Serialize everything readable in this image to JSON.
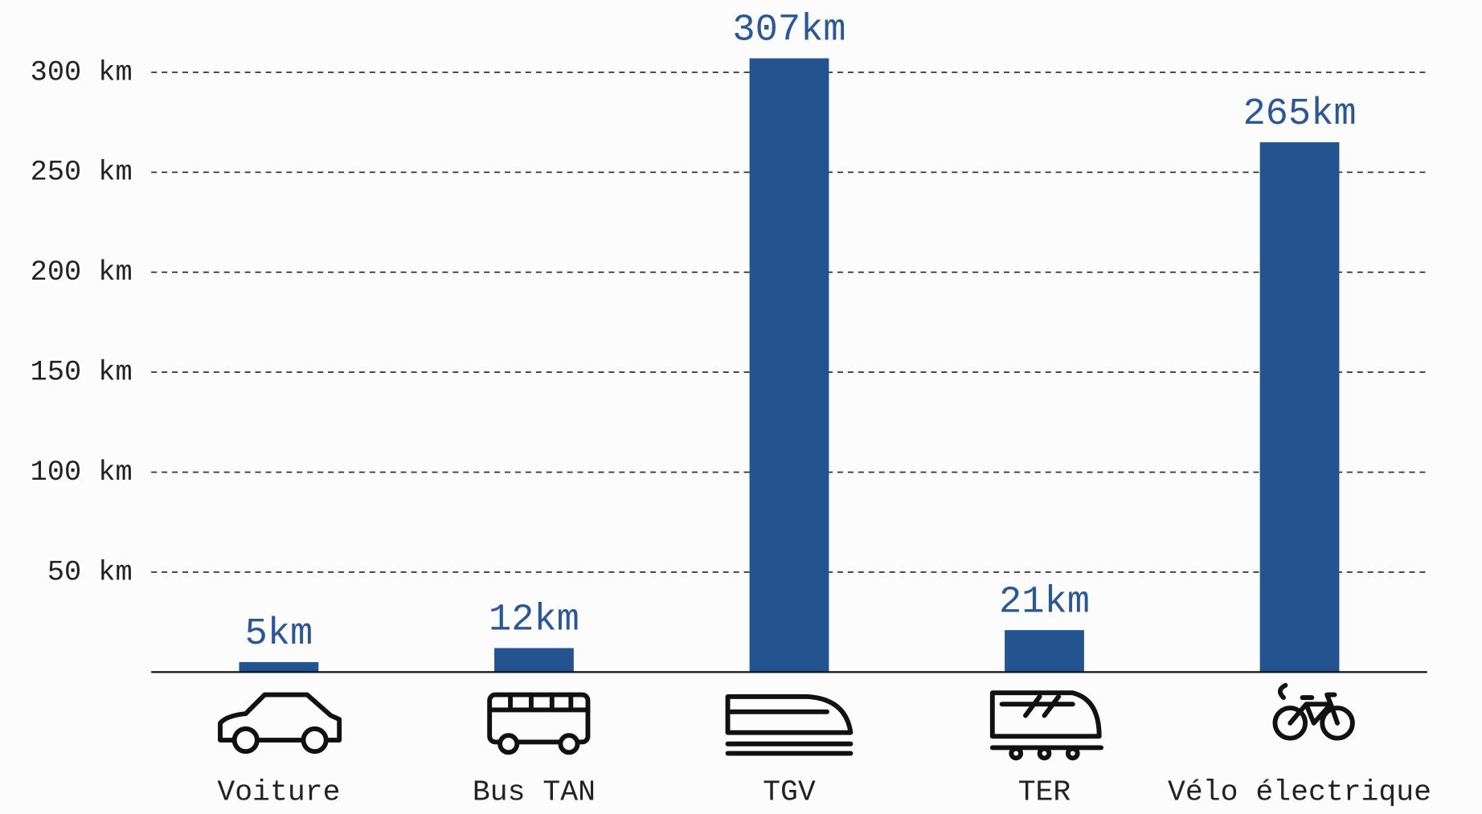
{
  "chart_data": {
    "type": "bar",
    "categories": [
      "Voiture",
      "Bus TAN",
      "TGV",
      "TER",
      "Vélo électrique"
    ],
    "values": [
      5,
      12,
      307,
      21,
      265
    ],
    "value_labels": [
      "5km",
      "12km",
      "307km",
      "21km",
      "265km"
    ],
    "color": "#23548f",
    "ylim": [
      0,
      320
    ],
    "yticks": [
      {
        "value": 50,
        "label": "50 km"
      },
      {
        "value": 100,
        "label": "100 km"
      },
      {
        "value": 150,
        "label": "150 km"
      },
      {
        "value": 200,
        "label": "200 km"
      },
      {
        "value": 250,
        "label": "250 km"
      },
      {
        "value": 300,
        "label": "300 km"
      }
    ],
    "grid": true
  }
}
